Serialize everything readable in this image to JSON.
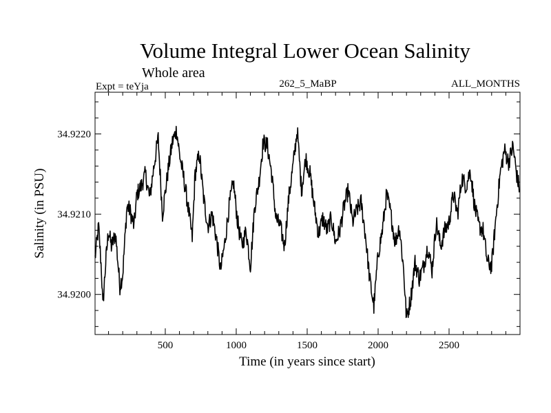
{
  "chart_data": {
    "type": "line",
    "title": "Volume Integral Lower Ocean Salinity",
    "subtitle": "Whole area",
    "annotations": {
      "left": "Expt = teYja",
      "center": "262_5_MaBP",
      "right": "ALL_MONTHS"
    },
    "xlabel": "Time (in years since start)",
    "ylabel": "Salinity (in PSU)",
    "xlim": [
      5,
      3000
    ],
    "ylim": [
      34.9195,
      34.92252
    ],
    "xticks": [
      500,
      1000,
      1500,
      2000,
      2500
    ],
    "xtick_labels": [
      "500",
      "1000",
      "1500",
      "2000",
      "2500"
    ],
    "yticks": [
      34.92,
      34.921,
      34.922
    ],
    "ytick_labels": [
      "34.9200",
      "34.9210",
      "34.9220"
    ],
    "grid": false,
    "legend": "none",
    "series": [
      {
        "name": "Salinity",
        "color": "#000000",
        "x": [
          5,
          30,
          50,
          60,
          80,
          100,
          120,
          150,
          180,
          200,
          230,
          250,
          280,
          300,
          330,
          360,
          390,
          420,
          450,
          480,
          520,
          550,
          580,
          600,
          630,
          660,
          690,
          710,
          740,
          770,
          800,
          830,
          860,
          890,
          920,
          950,
          980,
          1010,
          1040,
          1070,
          1100,
          1130,
          1160,
          1190,
          1220,
          1250,
          1280,
          1310,
          1340,
          1370,
          1400,
          1430,
          1460,
          1490,
          1520,
          1550,
          1580,
          1610,
          1640,
          1670,
          1700,
          1730,
          1760,
          1790,
          1820,
          1850,
          1880,
          1910,
          1940,
          1970,
          2000,
          2030,
          2060,
          2090,
          2120,
          2150,
          2180,
          2200,
          2230,
          2260,
          2290,
          2320,
          2350,
          2380,
          2410,
          2440,
          2470,
          2500,
          2530,
          2560,
          2590,
          2620,
          2650,
          2680,
          2710,
          2740,
          2770,
          2800,
          2830,
          2860,
          2890,
          2920,
          2950,
          2980,
          3000
        ],
        "values": [
          34.92045,
          34.92085,
          34.9203,
          34.91985,
          34.9204,
          34.9208,
          34.9206,
          34.92075,
          34.9201,
          34.92025,
          34.9211,
          34.92105,
          34.92085,
          34.92125,
          34.92135,
          34.9215,
          34.9212,
          34.9216,
          34.92195,
          34.921,
          34.92155,
          34.9219,
          34.92205,
          34.92175,
          34.92145,
          34.9211,
          34.9207,
          34.9215,
          34.92175,
          34.9212,
          34.92085,
          34.921,
          34.9207,
          34.9203,
          34.92065,
          34.9211,
          34.9214,
          34.9209,
          34.9206,
          34.9208,
          34.92035,
          34.9211,
          34.9214,
          34.9219,
          34.92185,
          34.9215,
          34.92095,
          34.92085,
          34.9206,
          34.9212,
          34.9216,
          34.92205,
          34.9213,
          34.9217,
          34.9215,
          34.9211,
          34.92075,
          34.92095,
          34.9208,
          34.92095,
          34.92065,
          34.9208,
          34.9211,
          34.9213,
          34.9209,
          34.92105,
          34.92115,
          34.92075,
          34.9202,
          34.91985,
          34.9205,
          34.9208,
          34.92125,
          34.921,
          34.92065,
          34.92085,
          34.9203,
          34.9197,
          34.91995,
          34.9204,
          34.9202,
          34.92035,
          34.9206,
          34.9203,
          34.9209,
          34.9206,
          34.9208,
          34.9209,
          34.92125,
          34.921,
          34.92145,
          34.92135,
          34.92155,
          34.9211,
          34.92085,
          34.9208,
          34.9204,
          34.92035,
          34.92095,
          34.9215,
          34.9218,
          34.92165,
          34.92185,
          34.92145,
          34.9213
        ]
      }
    ]
  }
}
